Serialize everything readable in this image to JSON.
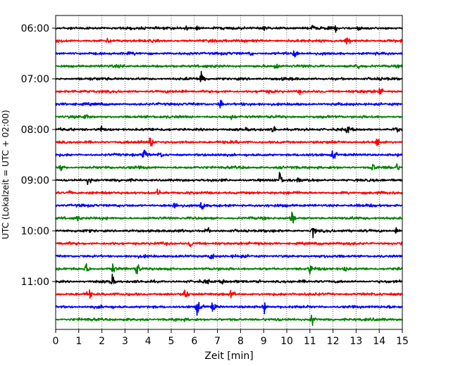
{
  "chart_data": {
    "type": "line",
    "title": "",
    "xlabel": "Zeit  [min]",
    "ylabel": "UTC (Lokalzeit = UTC + 02:00)",
    "xlim": [
      0,
      15
    ],
    "x_ticks": [
      "0",
      "1",
      "2",
      "3",
      "4",
      "5",
      "6",
      "7",
      "8",
      "9",
      "10",
      "11",
      "12",
      "13",
      "14",
      "15"
    ],
    "y_ticks": [
      "06:00",
      "07:00",
      "08:00",
      "09:00",
      "10:00",
      "11:00"
    ],
    "grid": "vertical dotted at each minute",
    "trace_interval_minutes": 15,
    "colors": [
      "#000000",
      "#ff0000",
      "#0000ff",
      "#008000"
    ],
    "traces": [
      {
        "start": "06:00",
        "color": "#000000",
        "events": [
          [
            5.6,
            1.2
          ],
          [
            6.1,
            1.0
          ],
          [
            9.0,
            0.8
          ],
          [
            11.1,
            0.9
          ],
          [
            12.1,
            1.0
          ],
          [
            13.1,
            0.8
          ]
        ]
      },
      {
        "start": "06:15",
        "color": "#ff0000",
        "events": [
          [
            12.6,
            2.5
          ],
          [
            2.2,
            0.8
          ]
        ]
      },
      {
        "start": "06:30",
        "color": "#0000ff",
        "events": [
          [
            10.3,
            1.8
          ],
          [
            8.4,
            0.9
          ]
        ]
      },
      {
        "start": "06:45",
        "color": "#008000",
        "events": [
          [
            9.5,
            1.4
          ],
          [
            13.0,
            1.6
          ]
        ]
      },
      {
        "start": "07:00",
        "color": "#000000",
        "events": [
          [
            6.3,
            3.8
          ]
        ]
      },
      {
        "start": "07:15",
        "color": "#ff0000",
        "events": [
          [
            14.0,
            2.0
          ],
          [
            10.5,
            0.8
          ]
        ]
      },
      {
        "start": "07:30",
        "color": "#0000ff",
        "events": [
          [
            7.1,
            2.8
          ]
        ]
      },
      {
        "start": "07:45",
        "color": "#008000",
        "events": [
          [
            1.3,
            1.0
          ],
          [
            7.6,
            0.8
          ]
        ]
      },
      {
        "start": "08:00",
        "color": "#000000",
        "events": [
          [
            1.9,
            1.8
          ],
          [
            9.4,
            2.0
          ],
          [
            12.6,
            1.5
          ],
          [
            14.7,
            1.0
          ]
        ]
      },
      {
        "start": "08:15",
        "color": "#ff0000",
        "events": [
          [
            4.1,
            2.8
          ],
          [
            13.9,
            1.8
          ]
        ]
      },
      {
        "start": "08:30",
        "color": "#0000ff",
        "events": [
          [
            3.8,
            2.8
          ],
          [
            12.0,
            2.4
          ],
          [
            4.5,
            1.0
          ]
        ]
      },
      {
        "start": "08:45",
        "color": "#008000",
        "events": [
          [
            0.2,
            2.2
          ],
          [
            13.7,
            1.6
          ],
          [
            14.7,
            1.8
          ]
        ]
      },
      {
        "start": "09:00",
        "color": "#000000",
        "events": [
          [
            1.4,
            1.6
          ],
          [
            9.7,
            3.2
          ],
          [
            10.5,
            0.8
          ]
        ]
      },
      {
        "start": "09:15",
        "color": "#ff0000",
        "events": [
          [
            4.4,
            1.6
          ],
          [
            0.6,
            0.8
          ]
        ]
      },
      {
        "start": "09:30",
        "color": "#0000ff",
        "events": [
          [
            6.3,
            2.6
          ],
          [
            5.1,
            1.5
          ]
        ]
      },
      {
        "start": "09:45",
        "color": "#008000",
        "events": [
          [
            10.2,
            2.8
          ],
          [
            0.9,
            1.4
          ]
        ]
      },
      {
        "start": "10:00",
        "color": "#000000",
        "events": [
          [
            6.5,
            2.0
          ],
          [
            11.1,
            2.4
          ],
          [
            14.7,
            1.2
          ]
        ]
      },
      {
        "start": "10:15",
        "color": "#ff0000",
        "events": [
          [
            5.8,
            1.8
          ],
          [
            15.0,
            2.5
          ]
        ]
      },
      {
        "start": "10:30",
        "color": "#0000ff",
        "events": [
          [
            6.7,
            2.2
          ]
        ]
      },
      {
        "start": "10:45",
        "color": "#008000",
        "events": [
          [
            1.3,
            2.8
          ],
          [
            2.4,
            2.8
          ],
          [
            3.5,
            2.8
          ],
          [
            11.0,
            2.2
          ],
          [
            12.5,
            1.0
          ]
        ]
      },
      {
        "start": "11:00",
        "color": "#000000",
        "events": [
          [
            2.4,
            2.4
          ],
          [
            6.5,
            1.0
          ],
          [
            7.2,
            1.0
          ],
          [
            8.7,
            0.8
          ]
        ]
      },
      {
        "start": "11:15",
        "color": "#ff0000",
        "events": [
          [
            1.4,
            2.4
          ],
          [
            5.6,
            2.6
          ],
          [
            7.6,
            1.6
          ]
        ]
      },
      {
        "start": "11:30",
        "color": "#0000ff",
        "events": [
          [
            6.1,
            3.0
          ],
          [
            6.8,
            2.0
          ],
          [
            9.0,
            2.2
          ]
        ]
      },
      {
        "start": "11:45",
        "color": "#008000",
        "events": [
          [
            11.1,
            3.0
          ]
        ]
      }
    ]
  }
}
